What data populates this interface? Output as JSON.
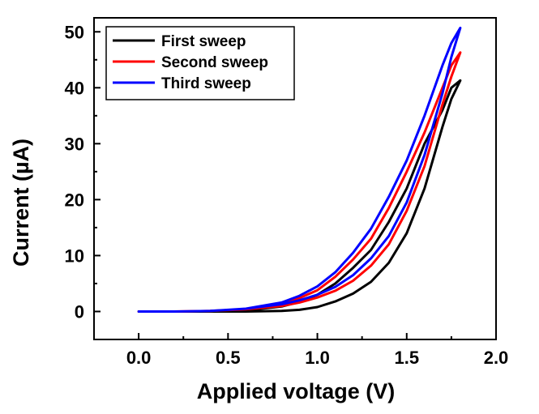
{
  "chart_data": {
    "type": "line",
    "xlabel": "Applied voltage (V)",
    "ylabel": "Current (µA)",
    "xlim": [
      -0.25,
      2.0
    ],
    "ylim": [
      -5,
      52.5
    ],
    "xticks": [
      0.0,
      0.5,
      1.0,
      1.5,
      2.0
    ],
    "xtick_labels": [
      "0.0",
      "0.5",
      "1.0",
      "1.5",
      "2.0"
    ],
    "yticks": [
      0,
      10,
      20,
      30,
      40,
      50
    ],
    "ytick_labels": [
      "0",
      "10",
      "20",
      "30",
      "40",
      "50"
    ],
    "grid": false,
    "legend_position": "top-left",
    "series": [
      {
        "name": "First sweep",
        "color": "#000000",
        "x": [
          0.0,
          0.2,
          0.4,
          0.6,
          0.8,
          0.9,
          1.0,
          1.1,
          1.2,
          1.3,
          1.4,
          1.5,
          1.6,
          1.7,
          1.75,
          1.8,
          1.75,
          1.7,
          1.6,
          1.5,
          1.4,
          1.3,
          1.2,
          1.1,
          1.0,
          0.9,
          0.8,
          0.6,
          0.4,
          0.2,
          0.0
        ],
        "y": [
          0.0,
          0.0,
          0.0,
          0.0,
          0.1,
          0.3,
          0.8,
          1.8,
          3.2,
          5.3,
          8.7,
          14.0,
          22.0,
          33.0,
          38.0,
          41.3,
          40.0,
          36.0,
          30.0,
          22.0,
          16.0,
          11.0,
          7.8,
          5.0,
          3.0,
          1.7,
          0.9,
          0.2,
          0.0,
          0.0,
          0.0
        ]
      },
      {
        "name": "Second sweep",
        "color": "#ff0000",
        "x": [
          0.0,
          0.2,
          0.4,
          0.6,
          0.8,
          0.9,
          1.0,
          1.1,
          1.2,
          1.3,
          1.4,
          1.5,
          1.6,
          1.7,
          1.75,
          1.8,
          1.75,
          1.7,
          1.6,
          1.5,
          1.4,
          1.3,
          1.2,
          1.1,
          1.0,
          0.9,
          0.8,
          0.6,
          0.4,
          0.2,
          0.0
        ],
        "y": [
          0.0,
          0.0,
          0.1,
          0.4,
          1.0,
          1.6,
          2.5,
          3.7,
          5.5,
          8.2,
          12.0,
          18.0,
          26.0,
          37.0,
          42.0,
          46.3,
          44.0,
          40.0,
          32.0,
          25.0,
          18.5,
          13.0,
          9.3,
          6.2,
          3.8,
          2.4,
          1.4,
          0.4,
          0.1,
          0.0,
          0.0
        ]
      },
      {
        "name": "Third sweep",
        "color": "#0000ff",
        "x": [
          0.0,
          0.2,
          0.4,
          0.6,
          0.8,
          0.9,
          1.0,
          1.1,
          1.2,
          1.3,
          1.4,
          1.5,
          1.6,
          1.7,
          1.75,
          1.8,
          1.75,
          1.7,
          1.6,
          1.5,
          1.4,
          1.3,
          1.2,
          1.1,
          1.0,
          0.9,
          0.8,
          0.6,
          0.4,
          0.2,
          0.0
        ],
        "y": [
          0.0,
          0.0,
          0.1,
          0.5,
          1.3,
          2.0,
          3.0,
          4.4,
          6.5,
          9.5,
          13.5,
          19.5,
          28.0,
          39.0,
          45.5,
          50.7,
          48.0,
          44.0,
          35.0,
          27.0,
          20.5,
          14.8,
          10.5,
          7.0,
          4.5,
          2.8,
          1.6,
          0.5,
          0.1,
          0.0,
          0.0
        ]
      }
    ]
  }
}
